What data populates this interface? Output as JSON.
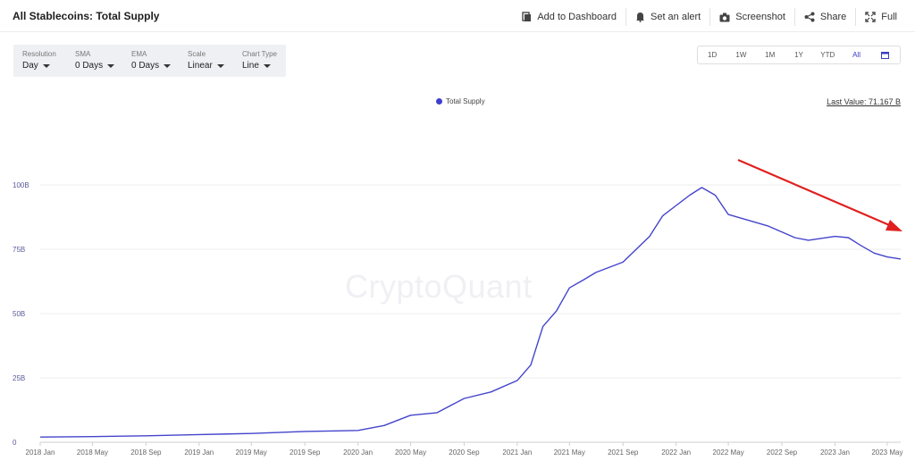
{
  "header": {
    "title": "All Stablecoins: Total Supply",
    "actions": [
      {
        "label": "Add to Dashboard",
        "icon": "dashboard-icon"
      },
      {
        "label": "Set an alert",
        "icon": "bell-icon"
      },
      {
        "label": "Screenshot",
        "icon": "camera-icon"
      },
      {
        "label": "Share",
        "icon": "share-icon"
      },
      {
        "label": "Full",
        "icon": "fullscreen-icon"
      }
    ]
  },
  "controls": [
    {
      "label": "Resolution",
      "value": "Day"
    },
    {
      "label": "SMA",
      "value": "0 Days"
    },
    {
      "label": "EMA",
      "value": "0 Days"
    },
    {
      "label": "Scale",
      "value": "Linear"
    },
    {
      "label": "Chart Type",
      "value": "Line"
    }
  ],
  "ranges": [
    "1D",
    "1W",
    "1M",
    "1Y",
    "YTD",
    "All"
  ],
  "active_range": "All",
  "last_value": "Last Value: 71.167 B",
  "watermark": "CryptoQuant",
  "colors": {
    "series": "#4444cc",
    "arrow": "#e02020",
    "accent": "#3b3bc4"
  },
  "chart_data": {
    "type": "line",
    "title": "",
    "xlabel": "",
    "ylabel": "",
    "series": [
      {
        "name": "Total Supply",
        "x": [
          "2018-01",
          "2018-05",
          "2018-09",
          "2019-01",
          "2019-05",
          "2019-09",
          "2020-01",
          "2020-03",
          "2020-05",
          "2020-07",
          "2020-09",
          "2020-11",
          "2021-01",
          "2021-02",
          "2021-03",
          "2021-04",
          "2021-05",
          "2021-06",
          "2021-07",
          "2021-09",
          "2021-11",
          "2021-12",
          "2022-01",
          "2022-02",
          "2022-03",
          "2022-04",
          "2022-05",
          "2022-06",
          "2022-08",
          "2022-10",
          "2022-11",
          "2023-01",
          "2023-02",
          "2023-03",
          "2023-04",
          "2023-05",
          "2023-06"
        ],
        "values": [
          2.0,
          2.2,
          2.5,
          3.0,
          3.4,
          4.2,
          4.6,
          6.5,
          10.5,
          11.5,
          17.0,
          19.5,
          24.0,
          30.0,
          45.0,
          51.0,
          60.0,
          63.0,
          66.0,
          70.0,
          80.0,
          88.0,
          92.0,
          96.0,
          99.0,
          96.0,
          88.5,
          87.0,
          84.0,
          79.5,
          78.5,
          80.0,
          79.5,
          76.5,
          73.5,
          72.0,
          71.2
        ]
      }
    ],
    "ylim": [
      0,
      125
    ],
    "yticks": [
      0,
      25,
      50,
      75,
      100
    ],
    "ytick_labels": [
      "0",
      "25B",
      "50B",
      "75B",
      "100B"
    ],
    "xtick_labels": [
      "2018 Jan",
      "2018 May",
      "2018 Sep",
      "2019 Jan",
      "2019 May",
      "2019 Sep",
      "2020 Jan",
      "2020 May",
      "2020 Sep",
      "2021 Jan",
      "2021 May",
      "2021 Sep",
      "2022 Jan",
      "2022 May",
      "2022 Sep",
      "2023 Jan",
      "2023 May"
    ],
    "legend": "top-center",
    "grid": true,
    "annotation": "red downward arrow from the 2022 peak toward 2023"
  }
}
